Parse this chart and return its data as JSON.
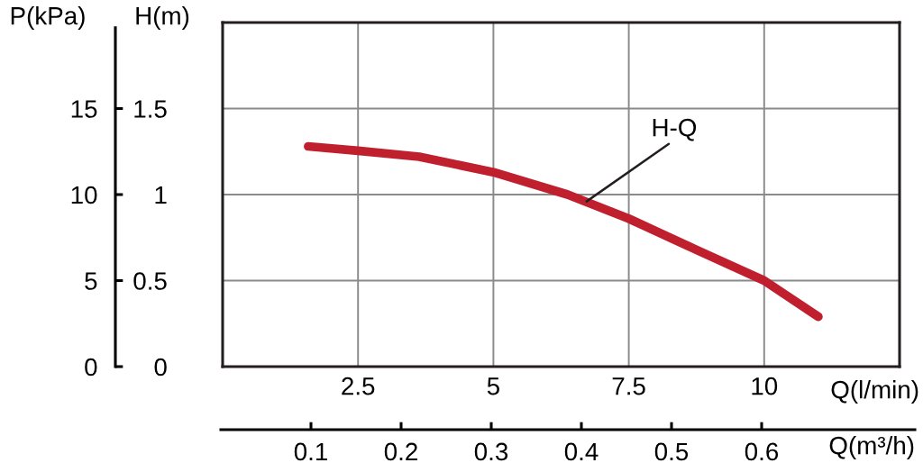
{
  "chart_data": {
    "type": "line",
    "xlabel": "Q(l/min)",
    "ylabel": "H(m)",
    "y2label": "P(kPa)",
    "x2label": "Q(m³/h)",
    "x": [
      1.58,
      2.5,
      3.63,
      5,
      6.37,
      7.5,
      8.74,
      10,
      11.0
    ],
    "series": [
      {
        "color": "#c01f2e",
        "values": [
          1.28,
          1.255,
          1.22,
          1.13,
          1.0,
          0.86,
          0.68,
          0.5,
          0.29
        ]
      }
    ],
    "xlim": [
      0,
      12.5
    ],
    "xticks": [
      2.5,
      5,
      7.5,
      10
    ],
    "ylim": [
      0,
      2
    ],
    "yticks": [
      0,
      0.5,
      1,
      1.5
    ],
    "y2lim": [
      0,
      20
    ],
    "y2ticks": [
      0,
      5,
      10,
      15
    ],
    "x2lim": [
      0,
      0.77
    ],
    "x2ticks": [
      0.1,
      0.2,
      0.3,
      0.4,
      0.5,
      0.6
    ],
    "grid": true,
    "marker": "none",
    "line_style": "solid",
    "annotations": [
      {
        "text": "H-Q",
        "x": 6.72,
        "y": 0.96
      }
    ]
  }
}
